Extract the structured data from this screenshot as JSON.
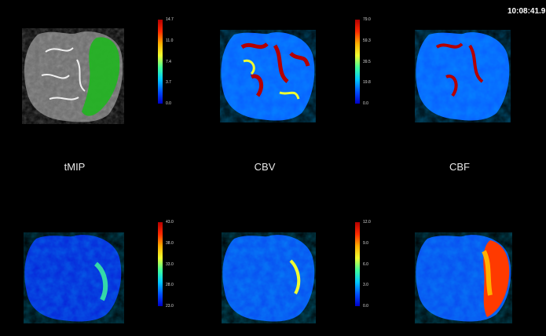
{
  "viewer": {
    "clock": "10:08:41.9"
  },
  "maps": [
    {
      "label": "tMIP",
      "colorbar": [
        "14.7",
        "11.0",
        "7.4",
        "3.7",
        "0.0"
      ]
    },
    {
      "label": "CBV",
      "colorbar": [
        "79.0",
        "59.3",
        "39.5",
        "19.8",
        "0.0"
      ]
    },
    {
      "label": "CBF",
      "colorbar": []
    },
    {
      "label": "",
      "colorbar": [
        "43.0",
        "38.0",
        "33.0",
        "28.0",
        "23.0"
      ]
    },
    {
      "label": "",
      "colorbar": [
        "12.0",
        "9.0",
        "6.0",
        "3.0",
        "0.0"
      ]
    },
    {
      "label": "",
      "colorbar": []
    }
  ],
  "colors": {
    "background": "#000000",
    "perfusion_high": "#b40000",
    "perfusion_low": "#0000c8",
    "overlay_green": "#22b422",
    "grayscale_ct": "#7a7a7a"
  }
}
